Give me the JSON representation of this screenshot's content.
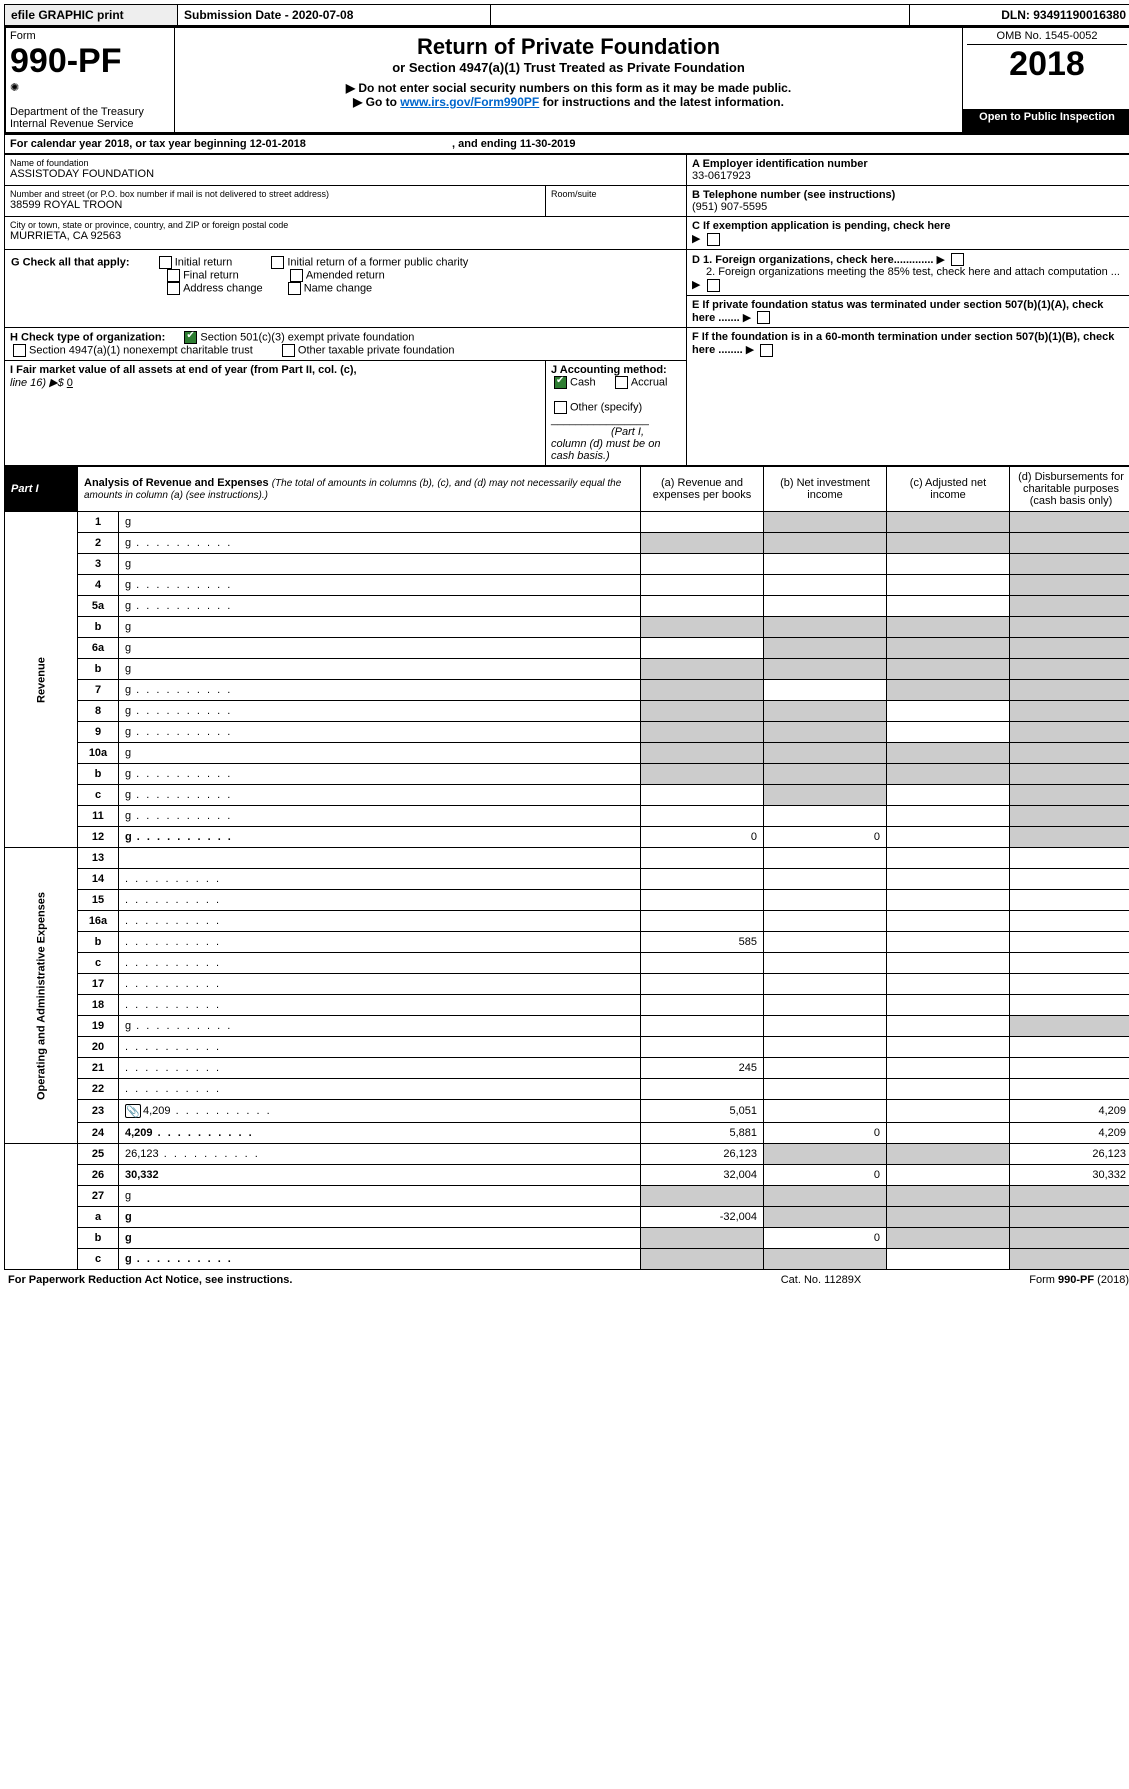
{
  "topbar": {
    "efile": "efile GRAPHIC print",
    "sub_label": "Submission Date - 2020-07-08",
    "dln": "DLN: 93491190016380"
  },
  "header": {
    "form_word": "Form",
    "form_no": "990-PF",
    "dept": "Department of the Treasury",
    "irs": "Internal Revenue Service",
    "title": "Return of Private Foundation",
    "subtitle": "or Section 4947(a)(1) Trust Treated as Private Foundation",
    "note1": "Do not enter social security numbers on this form as it may be made public.",
    "note2_pre": "Go to ",
    "note2_link": "www.irs.gov/Form990PF",
    "note2_post": " for instructions and the latest information.",
    "omb": "OMB No. 1545-0052",
    "year": "2018",
    "open": "Open to Public Inspection"
  },
  "cal": {
    "line": "For calendar year 2018, or tax year beginning 12-01-2018",
    "ending": ", and ending 11-30-2019"
  },
  "entity": {
    "name_label": "Name of foundation",
    "name": "ASSISTODAY FOUNDATION",
    "addr_label": "Number and street (or P.O. box number if mail is not delivered to street address)",
    "room_label": "Room/suite",
    "addr": "38599 ROYAL TROON",
    "city_label": "City or town, state or province, country, and ZIP or foreign postal code",
    "city": "MURRIETA, CA  92563",
    "a_label": "A Employer identification number",
    "a_val": "33-0617923",
    "b_label": "B Telephone number (see instructions)",
    "b_val": "(951) 907-5595",
    "c_label": "C If exemption application is pending, check here",
    "d1": "D 1. Foreign organizations, check here.............",
    "d2": "2. Foreign organizations meeting the 85% test, check here and attach computation ...",
    "e": "E  If private foundation status was terminated under section 507(b)(1)(A), check here .......",
    "f": "F  If the foundation is in a 60-month termination under section 507(b)(1)(B), check here ........"
  },
  "g": {
    "label": "G Check all that apply:",
    "opts": [
      "Initial return",
      "Final return",
      "Address change",
      "Initial return of a former public charity",
      "Amended return",
      "Name change"
    ]
  },
  "h": {
    "label": "H Check type of organization:",
    "opt1": "Section 501(c)(3) exempt private foundation",
    "opt2": "Section 4947(a)(1) nonexempt charitable trust",
    "opt3": "Other taxable private foundation"
  },
  "i": {
    "label": "I Fair market value of all assets at end of year (from Part II, col. (c),",
    "line16": "line 16) ▶$ ",
    "val": "0"
  },
  "j": {
    "label": "J Accounting method:",
    "cash": "Cash",
    "accrual": "Accrual",
    "other": "Other (specify)",
    "note": "(Part I, column (d) must be on cash basis.)"
  },
  "part1": {
    "label": "Part I",
    "title": "Analysis of Revenue and Expenses",
    "paren": " (The total of amounts in columns (b), (c), and (d) may not necessarily equal the amounts in column (a) (see instructions).)",
    "col_a": "(a)    Revenue and expenses per books",
    "col_b": "(b)   Net investment income",
    "col_c": "(c)   Adjusted net income",
    "col_d": "(d)   Disbursements for charitable purposes (cash basis only)"
  },
  "sections": {
    "revenue": "Revenue",
    "opex": "Operating and Administrative Expenses"
  },
  "rows": [
    {
      "n": "1",
      "d": "g",
      "a": "",
      "b": "g",
      "c": "g"
    },
    {
      "n": "2",
      "d": "g",
      "a": "g",
      "b": "g",
      "c": "g",
      "dots": true
    },
    {
      "n": "3",
      "d": "g",
      "a": "",
      "b": "",
      "c": ""
    },
    {
      "n": "4",
      "d": "g",
      "a": "",
      "b": "",
      "c": "",
      "dots": true
    },
    {
      "n": "5a",
      "d": "g",
      "a": "",
      "b": "",
      "c": "",
      "dots": true
    },
    {
      "n": "b",
      "d": "g",
      "a": "g",
      "b": "g",
      "c": "g"
    },
    {
      "n": "6a",
      "d": "g",
      "a": "",
      "b": "g",
      "c": "g"
    },
    {
      "n": "b",
      "d": "g",
      "a": "g",
      "b": "g",
      "c": "g"
    },
    {
      "n": "7",
      "d": "g",
      "a": "g",
      "b": "",
      "c": "g",
      "dots": true
    },
    {
      "n": "8",
      "d": "g",
      "a": "g",
      "b": "g",
      "c": "",
      "dots": true
    },
    {
      "n": "9",
      "d": "g",
      "a": "g",
      "b": "g",
      "c": "",
      "dots": true
    },
    {
      "n": "10a",
      "d": "g",
      "a": "g",
      "b": "g",
      "c": "g"
    },
    {
      "n": "b",
      "d": "g",
      "a": "g",
      "b": "g",
      "c": "g",
      "dots": true
    },
    {
      "n": "c",
      "d": "g",
      "a": "",
      "b": "g",
      "c": "",
      "dots": true
    },
    {
      "n": "11",
      "d": "g",
      "a": "",
      "b": "",
      "c": "",
      "dots": true
    },
    {
      "n": "12",
      "d": "g",
      "a": "0",
      "b": "0",
      "c": "",
      "bold": true,
      "dots": true
    },
    {
      "n": "13",
      "d": "",
      "a": "",
      "b": "",
      "c": ""
    },
    {
      "n": "14",
      "d": "",
      "a": "",
      "b": "",
      "c": "",
      "dots": true
    },
    {
      "n": "15",
      "d": "",
      "a": "",
      "b": "",
      "c": "",
      "dots": true
    },
    {
      "n": "16a",
      "d": "",
      "a": "",
      "b": "",
      "c": "",
      "dots": true
    },
    {
      "n": "b",
      "d": "",
      "a": "585",
      "b": "",
      "c": "",
      "dots": true
    },
    {
      "n": "c",
      "d": "",
      "a": "",
      "b": "",
      "c": "",
      "dots": true
    },
    {
      "n": "17",
      "d": "",
      "a": "",
      "b": "",
      "c": "",
      "dots": true
    },
    {
      "n": "18",
      "d": "",
      "a": "",
      "b": "",
      "c": "",
      "dots": true
    },
    {
      "n": "19",
      "d": "g",
      "a": "",
      "b": "",
      "c": "",
      "dots": true
    },
    {
      "n": "20",
      "d": "",
      "a": "",
      "b": "",
      "c": "",
      "dots": true
    },
    {
      "n": "21",
      "d": "",
      "a": "245",
      "b": "",
      "c": "",
      "dots": true
    },
    {
      "n": "22",
      "d": "",
      "a": "",
      "b": "",
      "c": "",
      "dots": true
    },
    {
      "n": "23",
      "d": "4,209",
      "a": "5,051",
      "b": "",
      "c": "",
      "dots": true,
      "icon": true
    },
    {
      "n": "24",
      "d": "4,209",
      "a": "5,881",
      "b": "0",
      "c": "",
      "bold": true,
      "dots": true
    },
    {
      "n": "25",
      "d": "26,123",
      "a": "26,123",
      "b": "g",
      "c": "g",
      "dots": true
    },
    {
      "n": "26",
      "d": "30,332",
      "a": "32,004",
      "b": "0",
      "c": "",
      "bold": true
    },
    {
      "n": "27",
      "d": "g",
      "a": "g",
      "b": "g",
      "c": "g"
    },
    {
      "n": "a",
      "d": "g",
      "a": "-32,004",
      "b": "g",
      "c": "g",
      "bold": true
    },
    {
      "n": "b",
      "d": "g",
      "a": "g",
      "b": "0",
      "c": "g",
      "bold": true
    },
    {
      "n": "c",
      "d": "g",
      "a": "g",
      "b": "g",
      "c": "",
      "bold": true,
      "dots": true
    }
  ],
  "footer": {
    "left": "For Paperwork Reduction Act Notice, see instructions.",
    "mid": "Cat. No. 11289X",
    "right": "Form 990-PF (2018)"
  }
}
